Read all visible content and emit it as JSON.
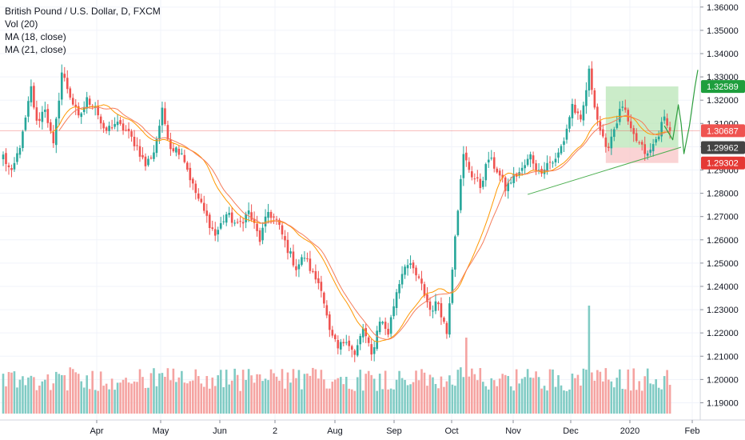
{
  "legend": {
    "title": "British Pound / U.S. Dollar, D, FXCM",
    "vol": "Vol (20)",
    "ma18": "MA (18, close)",
    "ma21": "MA (21, close)"
  },
  "colors": {
    "up": "#26a69a",
    "down": "#ef5350",
    "vol_up": "#80cbc4",
    "vol_down": "#f5a3a1",
    "ma18": "#ff9800",
    "ma21": "#f57c5a",
    "grid": "#f0f3fa",
    "green_zone": "#b9e6b7",
    "red_zone": "#f8c4c6",
    "price_tag_red": "#ef5350",
    "price_tag_green": "#1e9e3d",
    "price_tag_dark": "#444444",
    "price_tag_red2": "#e53935"
  },
  "chart_data": {
    "type": "candlestick",
    "ylim": [
      1.185,
      1.362
    ],
    "yticks": [
      "1.19000",
      "1.20000",
      "1.21000",
      "1.22000",
      "1.23000",
      "1.24000",
      "1.25000",
      "1.26000",
      "1.27000",
      "1.28000",
      "1.29000",
      "1.30000",
      "1.31000",
      "1.32000",
      "1.33000",
      "1.34000",
      "1.35000",
      "1.36000"
    ],
    "xlabels": [
      "Apr",
      "May",
      "Jun",
      "2",
      "Aug",
      "Sep",
      "Oct",
      "Nov",
      "Dec",
      "2020",
      "Feb"
    ],
    "price_tags": [
      {
        "label": "1.32589",
        "value": 1.32589,
        "color": "price_tag_green"
      },
      {
        "label": "1.30687",
        "value": 1.30687,
        "color": "price_tag_red"
      },
      {
        "label": "1.29962",
        "value": 1.29962,
        "color": "price_tag_dark"
      },
      {
        "label": "1.29302",
        "value": 1.29302,
        "color": "price_tag_red2"
      }
    ],
    "current_price_line": 1.30687,
    "anchors": [
      [
        0,
        1.296
      ],
      [
        3,
        1.288
      ],
      [
        7,
        1.305
      ],
      [
        10,
        1.325
      ],
      [
        12,
        1.31
      ],
      [
        15,
        1.317
      ],
      [
        18,
        1.3
      ],
      [
        21,
        1.332
      ],
      [
        24,
        1.322
      ],
      [
        27,
        1.312
      ],
      [
        30,
        1.32
      ],
      [
        33,
        1.318
      ],
      [
        36,
        1.306
      ],
      [
        40,
        1.31
      ],
      [
        44,
        1.307
      ],
      [
        48,
        1.3
      ],
      [
        51,
        1.292
      ],
      [
        54,
        1.298
      ],
      [
        57,
        1.315
      ],
      [
        60,
        1.3
      ],
      [
        64,
        1.298
      ],
      [
        68,
        1.283
      ],
      [
        72,
        1.272
      ],
      [
        76,
        1.262
      ],
      [
        80,
        1.271
      ],
      [
        84,
        1.266
      ],
      [
        88,
        1.272
      ],
      [
        92,
        1.26
      ],
      [
        95,
        1.272
      ],
      [
        98,
        1.268
      ],
      [
        102,
        1.256
      ],
      [
        105,
        1.248
      ],
      [
        108,
        1.253
      ],
      [
        111,
        1.245
      ],
      [
        114,
        1.24
      ],
      [
        117,
        1.22
      ],
      [
        120,
        1.213
      ],
      [
        123,
        1.218
      ],
      [
        126,
        1.21
      ],
      [
        129,
        1.222
      ],
      [
        132,
        1.21
      ],
      [
        135,
        1.226
      ],
      [
        138,
        1.22
      ],
      [
        141,
        1.238
      ],
      [
        144,
        1.25
      ],
      [
        147,
        1.247
      ],
      [
        150,
        1.24
      ],
      [
        153,
        1.23
      ],
      [
        156,
        1.233
      ],
      [
        159,
        1.22
      ],
      [
        162,
        1.263
      ],
      [
        165,
        1.296
      ],
      [
        168,
        1.288
      ],
      [
        171,
        1.283
      ],
      [
        174,
        1.295
      ],
      [
        177,
        1.29
      ],
      [
        180,
        1.282
      ],
      [
        183,
        1.287
      ],
      [
        186,
        1.29
      ],
      [
        189,
        1.296
      ],
      [
        192,
        1.289
      ],
      [
        195,
        1.293
      ],
      [
        198,
        1.294
      ],
      [
        201,
        1.303
      ],
      [
        204,
        1.318
      ],
      [
        207,
        1.31
      ],
      [
        210,
        1.332
      ],
      [
        213,
        1.312
      ],
      [
        216,
        1.298
      ],
      [
        219,
        1.308
      ],
      [
        222,
        1.318
      ],
      [
        225,
        1.306
      ],
      [
        228,
        1.301
      ],
      [
        231,
        1.296
      ],
      [
        234,
        1.303
      ],
      [
        237,
        1.312
      ],
      [
        239,
        1.31
      ]
    ],
    "candle_count": 240,
    "ma_periods": [
      18,
      21
    ],
    "zones": [
      {
        "name": "green",
        "y1": 1.32589,
        "y2": 1.29962,
        "i1": 216,
        "i2": 242
      },
      {
        "name": "red",
        "y1": 1.29962,
        "y2": 1.29302,
        "i1": 216,
        "i2": 242
      }
    ],
    "trendline": {
      "i1": 188,
      "v1": 1.2795,
      "i2": 243,
      "v2": 1.2998
    },
    "projection": [
      [
        237,
        1.309
      ],
      [
        240,
        1.303
      ],
      [
        242,
        1.318
      ],
      [
        243,
        1.31
      ],
      [
        244,
        1.297
      ],
      [
        246,
        1.309
      ],
      [
        248,
        1.326
      ],
      [
        249,
        1.333
      ]
    ]
  }
}
